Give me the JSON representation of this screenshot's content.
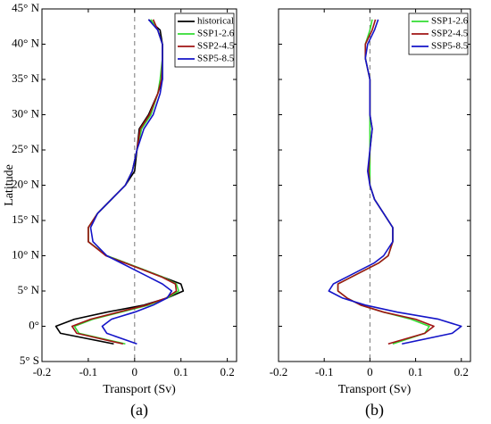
{
  "chart_data": [
    {
      "type": "line",
      "panel_label": "(a)",
      "x_label": "Transport (Sv)",
      "y_label": "Latitude",
      "xlim": [
        -0.2,
        0.22
      ],
      "xticks": [
        -0.2,
        -0.1,
        0,
        0.1,
        0.2
      ],
      "ylim": [
        -5,
        45
      ],
      "yticks": [
        {
          "value": -5,
          "label": "5° S"
        },
        {
          "value": 0,
          "label": "0°"
        },
        {
          "value": 5,
          "label": "5° N"
        },
        {
          "value": 10,
          "label": "10° N"
        },
        {
          "value": 15,
          "label": "15° N"
        },
        {
          "value": 20,
          "label": "20° N"
        },
        {
          "value": 25,
          "label": "25° N"
        },
        {
          "value": 30,
          "label": "30° N"
        },
        {
          "value": 35,
          "label": "35° N"
        },
        {
          "value": 40,
          "label": "40° N"
        },
        {
          "value": 45,
          "label": "45° N"
        }
      ],
      "zero_line": true,
      "legend": "upper right",
      "latitudes": [
        -2.5,
        -1,
        0,
        1,
        2,
        3,
        4,
        5,
        6,
        7,
        8,
        9,
        10,
        12,
        14,
        16,
        18,
        20,
        22,
        25,
        28,
        30,
        33,
        35,
        38,
        40,
        42,
        43.5
      ],
      "series": [
        {
          "name": "historical",
          "color": "#000000",
          "values": [
            -0.045,
            -0.16,
            -0.17,
            -0.13,
            -0.06,
            0.02,
            0.07,
            0.105,
            0.1,
            0.06,
            0.02,
            -0.02,
            -0.06,
            -0.1,
            -0.1,
            -0.08,
            -0.05,
            -0.02,
            0.0,
            0.005,
            0.01,
            0.03,
            0.05,
            0.06,
            0.06,
            0.06,
            0.055,
            0.03
          ]
        },
        {
          "name": "SSP1-2.6",
          "color": "#33dd33",
          "values": [
            -0.02,
            -0.12,
            -0.13,
            -0.09,
            -0.03,
            0.03,
            0.07,
            0.095,
            0.09,
            0.06,
            0.02,
            -0.02,
            -0.06,
            -0.1,
            -0.1,
            -0.08,
            -0.05,
            -0.02,
            -0.005,
            0.005,
            0.015,
            0.035,
            0.05,
            0.055,
            0.06,
            0.06,
            0.05,
            0.035
          ]
        },
        {
          "name": "SSP2-4.5",
          "color": "#a01414",
          "values": [
            -0.025,
            -0.125,
            -0.135,
            -0.095,
            -0.035,
            0.025,
            0.068,
            0.09,
            0.088,
            0.058,
            0.018,
            -0.022,
            -0.062,
            -0.1,
            -0.1,
            -0.08,
            -0.05,
            -0.02,
            -0.005,
            0.005,
            0.012,
            0.032,
            0.05,
            0.058,
            0.06,
            0.06,
            0.05,
            0.04
          ]
        },
        {
          "name": "SSP5-8.5",
          "color": "#1414c8",
          "values": [
            0.005,
            -0.06,
            -0.07,
            -0.05,
            0.0,
            0.04,
            0.07,
            0.08,
            0.06,
            0.03,
            0.0,
            -0.03,
            -0.06,
            -0.09,
            -0.095,
            -0.08,
            -0.05,
            -0.02,
            -0.005,
            0.005,
            0.02,
            0.04,
            0.055,
            0.06,
            0.06,
            0.06,
            0.05,
            0.03
          ]
        }
      ]
    },
    {
      "type": "line",
      "panel_label": "(b)",
      "x_label": "Transport (Sv)",
      "xlim": [
        -0.2,
        0.22
      ],
      "xticks": [
        -0.2,
        -0.1,
        0,
        0.1,
        0.2
      ],
      "ylim": [
        -5,
        45
      ],
      "yticks": [
        -5,
        0,
        5,
        10,
        15,
        20,
        25,
        30,
        35,
        40,
        45
      ],
      "zero_line": true,
      "legend": "upper right",
      "latitudes": [
        -2.5,
        -1,
        0,
        1,
        2,
        3,
        4,
        5,
        6,
        7,
        8,
        9,
        10,
        12,
        14,
        16,
        18,
        20,
        22,
        25,
        28,
        30,
        33,
        35,
        38,
        40,
        42,
        43.5
      ],
      "series": [
        {
          "name": "SSP1-2.6",
          "color": "#33dd33",
          "values": [
            0.05,
            0.12,
            0.13,
            0.09,
            0.03,
            -0.02,
            -0.05,
            -0.07,
            -0.07,
            -0.04,
            -0.01,
            0.02,
            0.04,
            0.05,
            0.05,
            0.03,
            0.01,
            0.0,
            0.0,
            0.0,
            0.0,
            0.0,
            0.0,
            0.0,
            -0.01,
            -0.01,
            0.0,
            0.005
          ]
        },
        {
          "name": "SSP2-4.5",
          "color": "#a01414",
          "values": [
            0.04,
            0.12,
            0.14,
            0.1,
            0.03,
            -0.02,
            -0.05,
            -0.07,
            -0.07,
            -0.04,
            -0.01,
            0.02,
            0.04,
            0.05,
            0.05,
            0.03,
            0.01,
            0.0,
            -0.003,
            0.0,
            0.005,
            0.0,
            0.0,
            0.0,
            -0.01,
            -0.01,
            0.005,
            0.012
          ]
        },
        {
          "name": "SSP5-8.5",
          "color": "#1414c8",
          "values": [
            0.07,
            0.18,
            0.2,
            0.15,
            0.06,
            -0.01,
            -0.06,
            -0.09,
            -0.08,
            -0.05,
            -0.02,
            0.01,
            0.03,
            0.05,
            0.05,
            0.03,
            0.01,
            0.0,
            -0.005,
            0.0,
            0.005,
            0.0,
            0.0,
            0.0,
            -0.01,
            -0.005,
            0.01,
            0.018
          ]
        }
      ]
    }
  ]
}
